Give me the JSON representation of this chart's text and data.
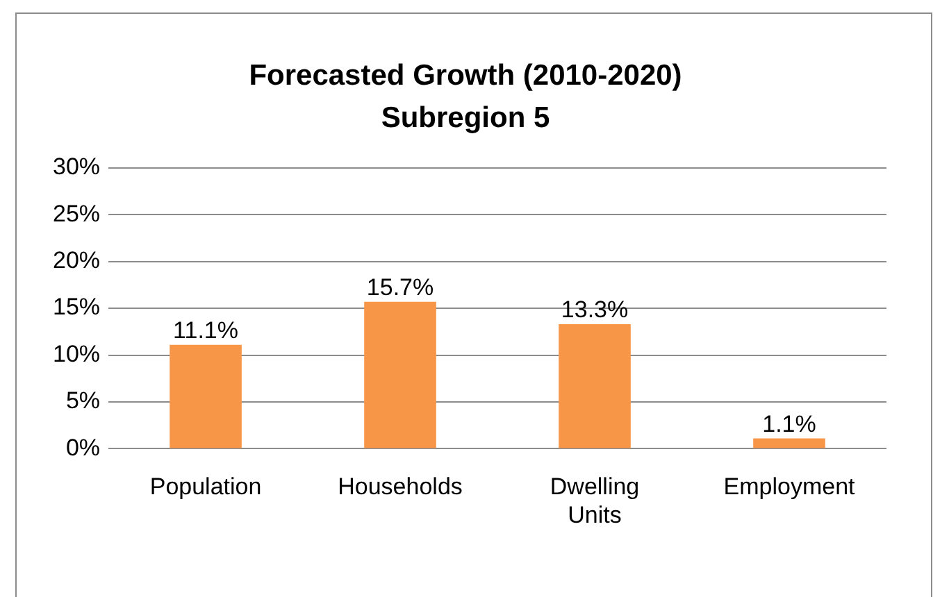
{
  "chart_data": {
    "type": "bar",
    "title": [
      "Forecasted Growth (2010-2020)",
      "Subregion 5"
    ],
    "categories": [
      "Population",
      "Households",
      "Dwelling Units",
      "Employment"
    ],
    "values": [
      11.1,
      15.7,
      13.3,
      1.1
    ],
    "color": "#f79646",
    "value_labels": [
      "11.1%",
      "15.7%",
      "13.3%",
      "1.1%"
    ],
    "ylim": [
      0,
      30
    ],
    "yticks": [
      {
        "value": 0,
        "label": "0%"
      },
      {
        "value": 5,
        "label": "5%"
      },
      {
        "value": 10,
        "label": "10%"
      },
      {
        "value": 15,
        "label": "15%"
      },
      {
        "value": 20,
        "label": "20%"
      },
      {
        "value": 25,
        "label": "25%"
      },
      {
        "value": 30,
        "label": "30%"
      }
    ],
    "grid": "y",
    "legend": false
  }
}
